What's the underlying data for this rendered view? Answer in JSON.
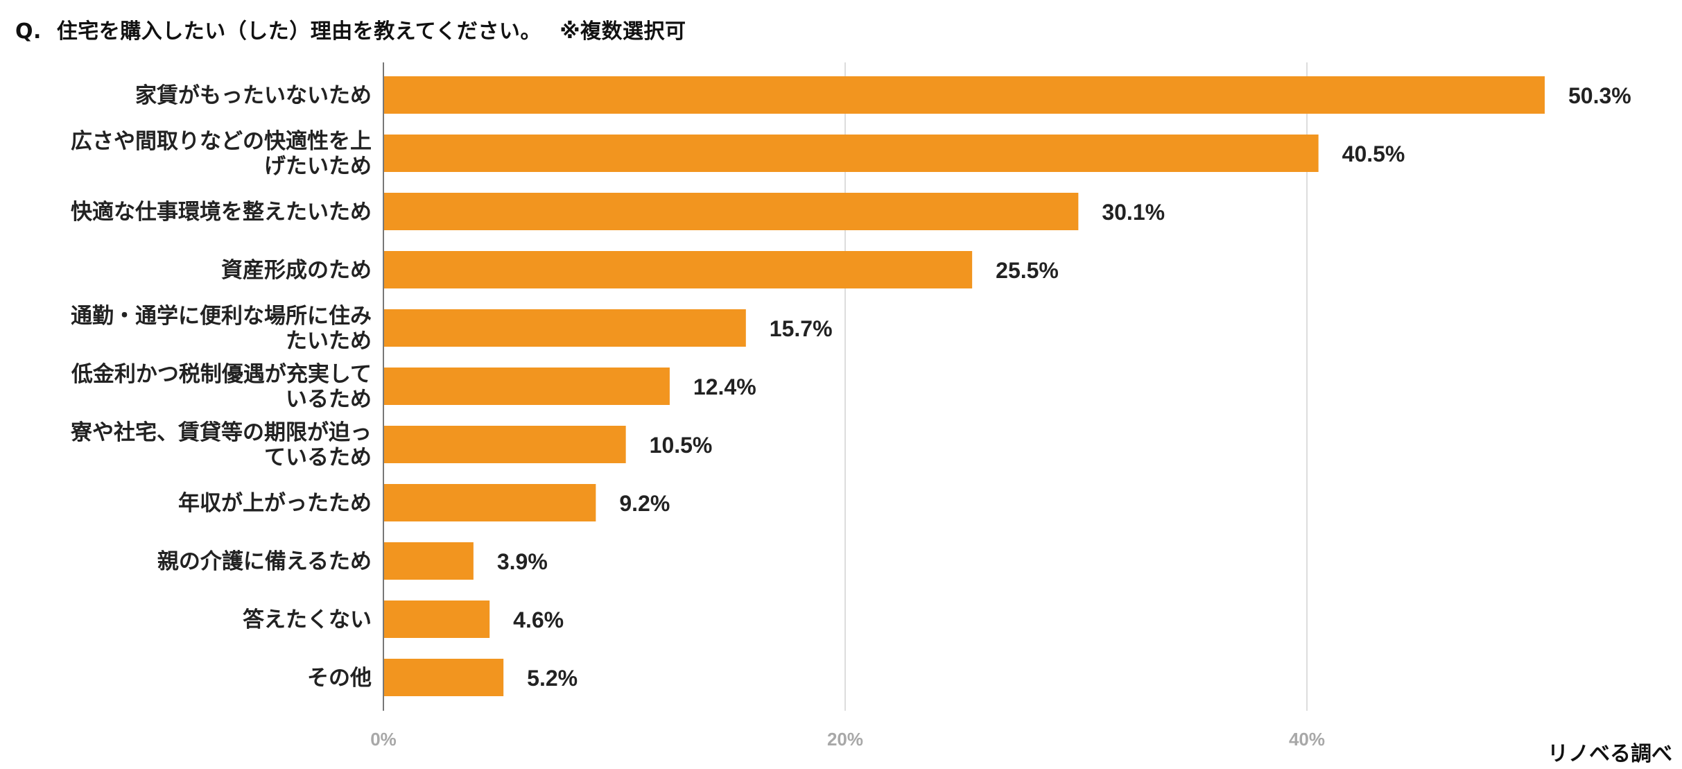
{
  "title": "Q.  住宅を購入したい（した）理由を教えてください。　 ※複数選択可",
  "source": "リノベる調べ",
  "colors": {
    "bar": "#F2951F",
    "grid": "#dddddd",
    "axis": "#777777",
    "tick": "#a8a8a8"
  },
  "chart_data": {
    "type": "bar",
    "orientation": "horizontal",
    "categories": [
      [
        "家賃がもったいないため"
      ],
      [
        "広さや間取りなどの快適性を上",
        "げたいため"
      ],
      [
        "快適な仕事環境を整えたいため"
      ],
      [
        "資産形成のため"
      ],
      [
        "通勤・通学に便利な場所に住み",
        "たいため"
      ],
      [
        "低金利かつ税制優遇が充実して",
        "いるため"
      ],
      [
        "寮や社宅、賃貸等の期限が迫っ",
        "ているため"
      ],
      [
        "年収が上がったため"
      ],
      [
        "親の介護に備えるため"
      ],
      [
        "答えたくない"
      ],
      [
        "その他"
      ]
    ],
    "values": [
      50.3,
      40.5,
      30.1,
      25.5,
      15.7,
      12.4,
      10.5,
      9.2,
      3.9,
      4.6,
      5.2
    ],
    "value_labels": [
      "50.3%",
      "40.5%",
      "30.1%",
      "25.5%",
      "15.7%",
      "12.4%",
      "10.5%",
      "9.2%",
      "3.9%",
      "4.6%",
      "5.2%"
    ],
    "xticks": [
      0,
      20,
      40
    ],
    "xtick_labels": [
      "0%",
      "20%",
      "40%"
    ],
    "xlim": [
      0,
      55
    ],
    "grid": true,
    "legend": "none"
  }
}
